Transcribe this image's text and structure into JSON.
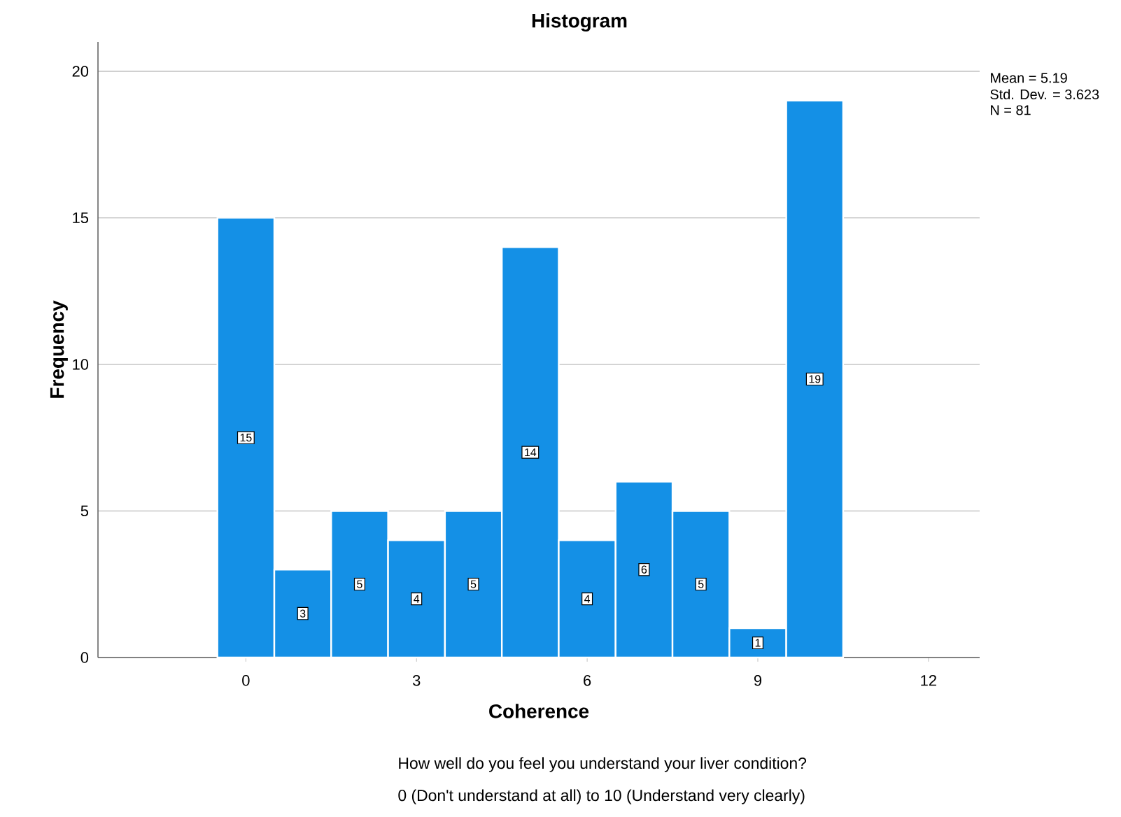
{
  "chart_data": {
    "type": "histogram",
    "title": "Histogram",
    "xlabel": "Coherence",
    "ylabel": "Frequency",
    "bins": [
      -0.5,
      0.5,
      1.5,
      2.5,
      3.5,
      4.5,
      5.5,
      6.5,
      7.5,
      8.5,
      9.5,
      10.5
    ],
    "values": [
      15,
      3,
      5,
      4,
      5,
      14,
      4,
      6,
      5,
      1,
      19
    ],
    "color": "#1490e6",
    "data_labels": true,
    "grid": "y",
    "xlim": [
      -2.6,
      12.9
    ],
    "xticks": [
      0,
      3,
      6,
      9,
      12
    ],
    "ylim": [
      0,
      21
    ],
    "yticks": [
      0,
      5,
      10,
      15,
      20
    ],
    "annotations": [
      "Mean = 5.19",
      "Std. Dev. = 3.623",
      "N = 81",
      "How well do you feel you understand your liver condition?",
      "0 (Don't understand at all) to 10 (Understand very clearly)"
    ]
  }
}
